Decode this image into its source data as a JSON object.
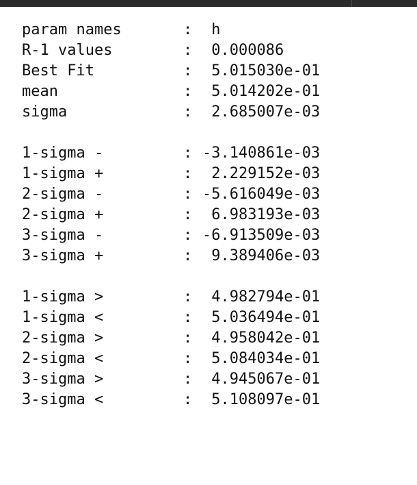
{
  "colors": {
    "background": "#ffffff",
    "topbar": "#2b2b2b",
    "text": "#111111"
  },
  "output": {
    "separator": ":",
    "groups": [
      {
        "rows": [
          {
            "label": "param names",
            "value": " h"
          },
          {
            "label": "R-1 values",
            "value": " 0.000086"
          },
          {
            "label": "Best Fit",
            "value": " 5.015030e-01"
          },
          {
            "label": "mean",
            "value": " 5.014202e-01"
          },
          {
            "label": "sigma",
            "value": " 2.685007e-03"
          }
        ]
      },
      {
        "rows": [
          {
            "label": "1-sigma -",
            "value": "-3.140861e-03"
          },
          {
            "label": "1-sigma +",
            "value": " 2.229152e-03"
          },
          {
            "label": "2-sigma -",
            "value": "-5.616049e-03"
          },
          {
            "label": "2-sigma +",
            "value": " 6.983193e-03"
          },
          {
            "label": "3-sigma -",
            "value": "-6.913509e-03"
          },
          {
            "label": "3-sigma +",
            "value": " 9.389406e-03"
          }
        ]
      },
      {
        "rows": [
          {
            "label": "1-sigma >",
            "value": " 4.982794e-01"
          },
          {
            "label": "1-sigma <",
            "value": " 5.036494e-01"
          },
          {
            "label": "2-sigma >",
            "value": " 4.958042e-01"
          },
          {
            "label": "2-sigma <",
            "value": " 5.084034e-01"
          },
          {
            "label": "3-sigma >",
            "value": " 4.945067e-01"
          },
          {
            "label": "3-sigma <",
            "value": " 5.108097e-01"
          }
        ]
      }
    ]
  }
}
